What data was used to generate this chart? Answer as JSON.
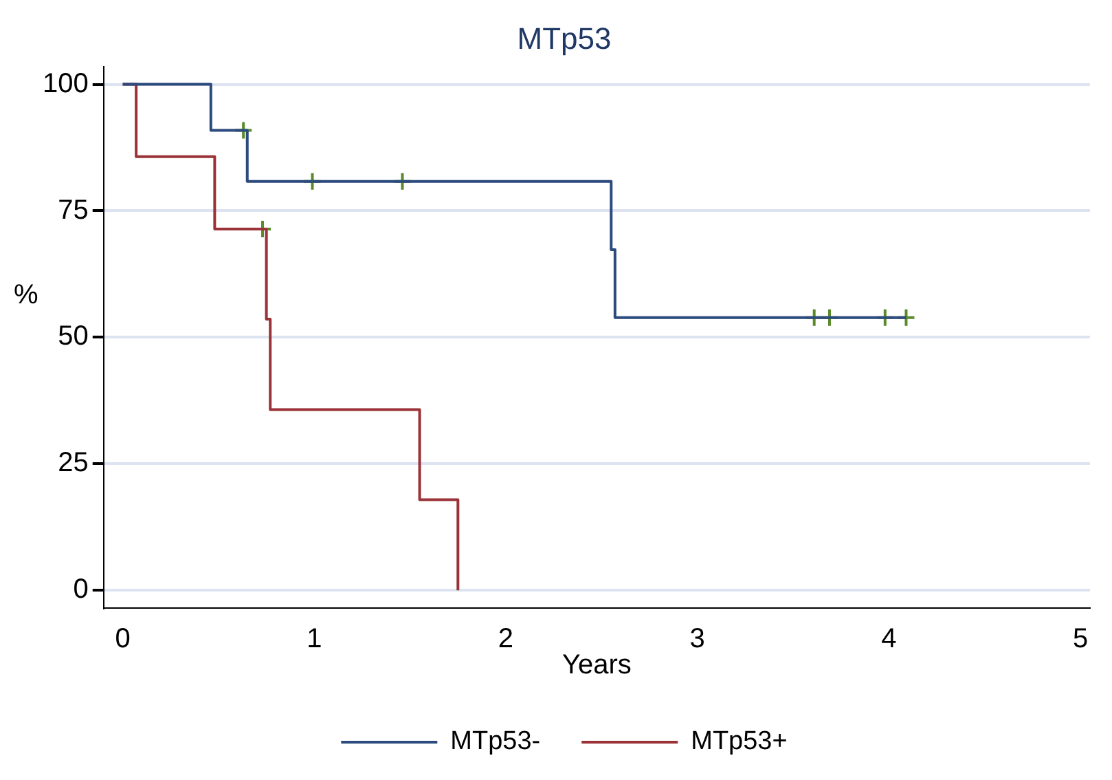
{
  "chart_data": {
    "type": "step",
    "title": "MTp53",
    "xlabel": "Years",
    "ylabel": "%",
    "xlim": [
      -0.1,
      5.05
    ],
    "xticks": [
      0,
      1,
      2,
      3,
      4,
      5
    ],
    "ylim": [
      -3.5,
      103.5
    ],
    "yticks": [
      0,
      25,
      50,
      75,
      100
    ],
    "grid": "y",
    "legend": "bottom",
    "series": [
      {
        "name": "MTp53-",
        "color": "#2b4a7d",
        "x": [
          0,
          0.46,
          0.65,
          2.55,
          2.57,
          4.09
        ],
        "values": [
          100,
          90.9,
          80.8,
          67.3,
          53.9,
          53.9
        ]
      },
      {
        "name": "MTp53+",
        "color": "#9b3238",
        "x": [
          0,
          0.07,
          0.48,
          0.75,
          0.77,
          1.55,
          1.75
        ],
        "values": [
          100,
          85.7,
          71.4,
          53.6,
          35.7,
          17.9,
          0
        ]
      },
      {
        "type": "scatter",
        "marker": "cross",
        "color": "#5a8a2a",
        "x": [
          0.63,
          0.99,
          1.46,
          3.61,
          3.69,
          3.98,
          4.09,
          0.73
        ],
        "values": [
          90.9,
          80.8,
          80.8,
          53.9,
          53.9,
          53.9,
          53.9,
          71.4
        ]
      }
    ]
  }
}
